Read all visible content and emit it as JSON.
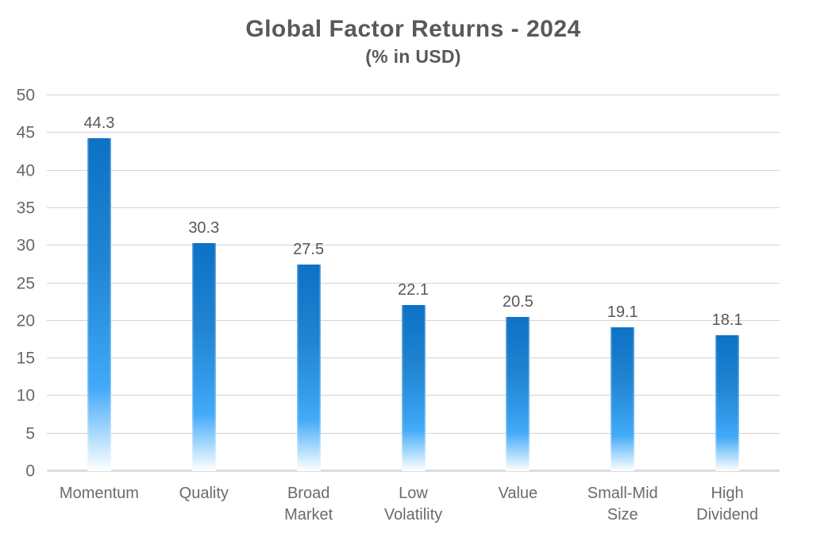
{
  "chart_data": {
    "type": "bar",
    "title": "Global Factor Returns - 2024",
    "subtitle": "(% in USD)",
    "categories": [
      "Momentum",
      "Quality",
      "Broad Market",
      "Low Volatility",
      "Value",
      "Small-Mid Size",
      "High Dividend"
    ],
    "category_lines": [
      [
        "Momentum"
      ],
      [
        "Quality"
      ],
      [
        "Broad",
        "Market"
      ],
      [
        "Low",
        "Volatility"
      ],
      [
        "Value"
      ],
      [
        "Small-Mid",
        "Size"
      ],
      [
        "High",
        "Dividend"
      ]
    ],
    "values": [
      44.3,
      30.3,
      27.5,
      22.1,
      20.5,
      19.1,
      18.1
    ],
    "data_labels": [
      "44.3",
      "30.3",
      "27.5",
      "22.1",
      "20.5",
      "19.1",
      "18.1"
    ],
    "ylim": [
      0,
      50
    ],
    "yticks": [
      0,
      5,
      10,
      15,
      20,
      25,
      30,
      35,
      40,
      45,
      50
    ],
    "ytick_labels": [
      "0",
      "5",
      "10",
      "15",
      "20",
      "25",
      "30",
      "35",
      "40",
      "45",
      "50"
    ],
    "grid": "horizontal",
    "legend": "none",
    "colors": {
      "bar_gradient_top": "#0d71c5",
      "bar_gradient_upper_mid": "#2185d3",
      "bar_gradient_mid": "#339ceb",
      "bar_gradient_bright": "#43aaf8",
      "bar_gradient_fade": "#c9e8fd",
      "bar_gradient_bottom": "#ffffff",
      "gridline": "#d4d4d4",
      "baseline": "#dcdcdc",
      "title": "#58595b",
      "value_label": "#57585a",
      "y_axis_label": "#666768",
      "x_axis_label": "#6b6b6b",
      "background": "#ffffff"
    }
  }
}
